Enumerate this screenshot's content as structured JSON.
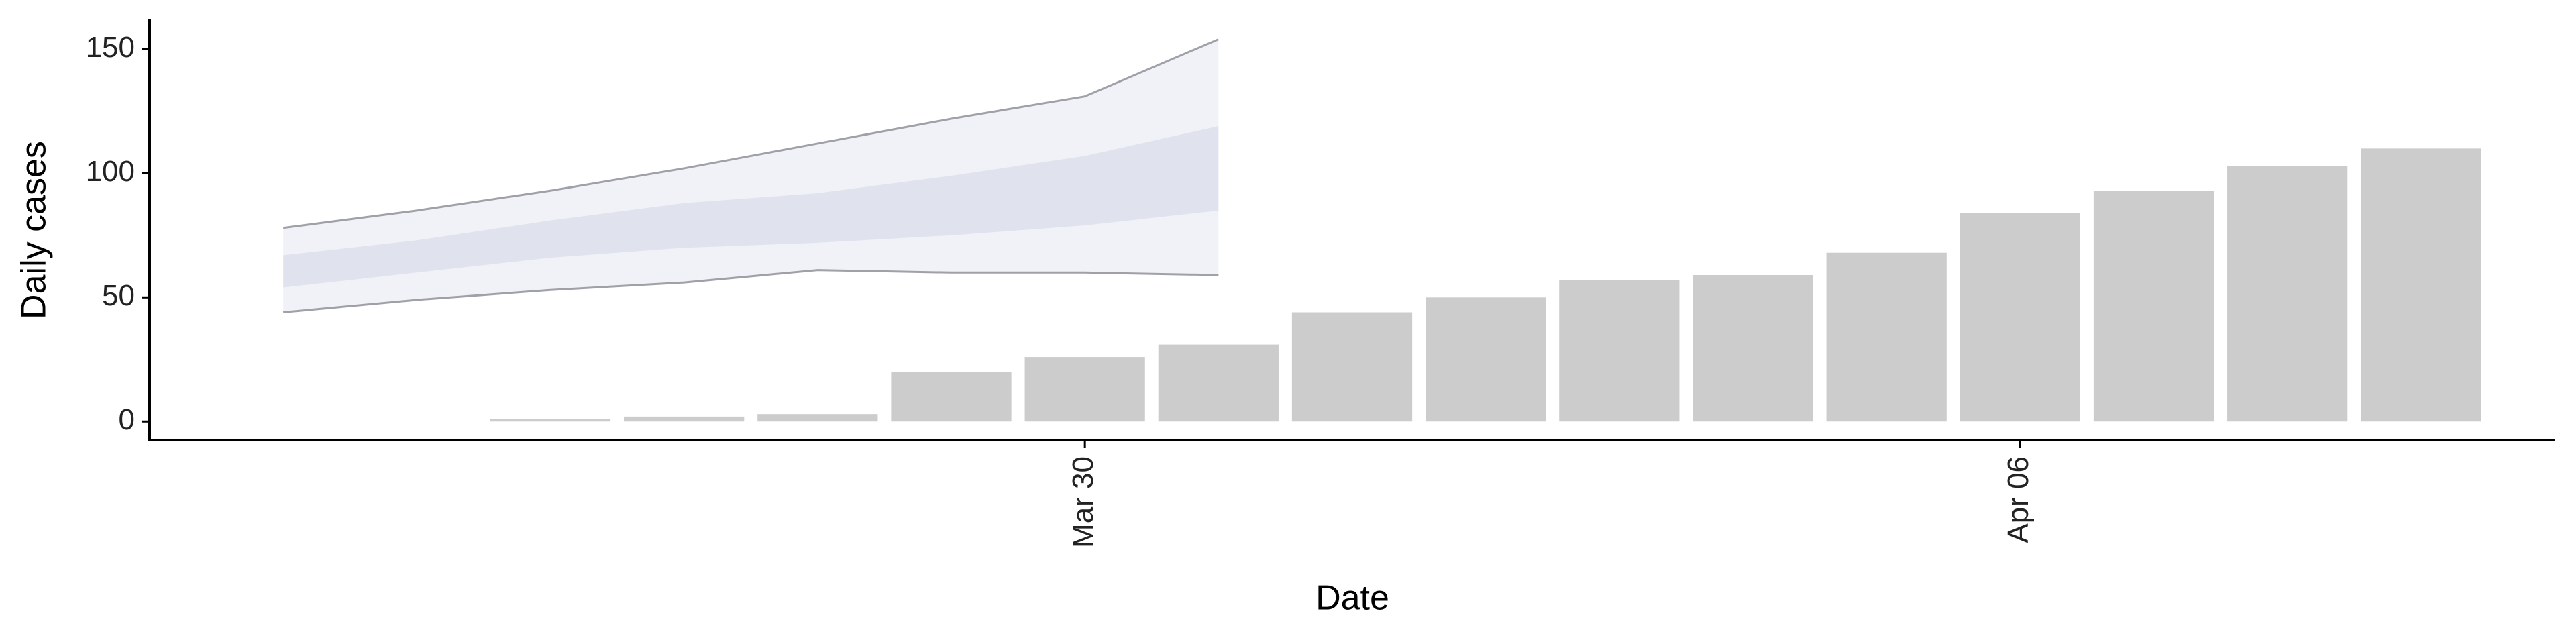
{
  "chart_data": {
    "type": "bar",
    "xlabel": "Date",
    "ylabel": "Daily cases",
    "x": [
      "Mar 26",
      "Mar 27",
      "Mar 28",
      "Mar 29",
      "Mar 30",
      "Mar 31",
      "Apr 01",
      "Apr 02",
      "Apr 03",
      "Apr 04",
      "Apr 05",
      "Apr 06",
      "Apr 07",
      "Apr 08",
      "Apr 09"
    ],
    "values": [
      1,
      2,
      3,
      20,
      26,
      31,
      44,
      50,
      57,
      59,
      68,
      84,
      93,
      103,
      110
    ],
    "color": "#cccccc",
    "ribbons": [
      {
        "x": [
          "Mar 24",
          "Mar 25",
          "Mar 26",
          "Mar 27",
          "Mar 28",
          "Mar 29",
          "Mar 30",
          "Mar 31"
        ],
        "lower": [
          44,
          49,
          53,
          56,
          61,
          60,
          60,
          59
        ],
        "upper": [
          78,
          85,
          93,
          102,
          112,
          122,
          131,
          154
        ],
        "color": "#eef0f6",
        "line_color": "#a0a0a8"
      },
      {
        "x": [
          "Mar 24",
          "Mar 25",
          "Mar 26",
          "Mar 27",
          "Mar 28",
          "Mar 29",
          "Mar 30",
          "Mar 31"
        ],
        "lower": [
          54,
          60,
          66,
          70,
          72,
          75,
          79,
          85
        ],
        "upper": [
          67,
          73,
          81,
          88,
          92,
          99,
          107,
          119
        ],
        "color": "#dde1ec"
      }
    ],
    "xlim": [
      "Mar 23",
      "Apr 10"
    ],
    "xticks": [
      "Mar 30",
      "Apr 06"
    ],
    "ylim": [
      -7.5,
      162
    ],
    "yticks": [
      0,
      50,
      100,
      150
    ]
  }
}
